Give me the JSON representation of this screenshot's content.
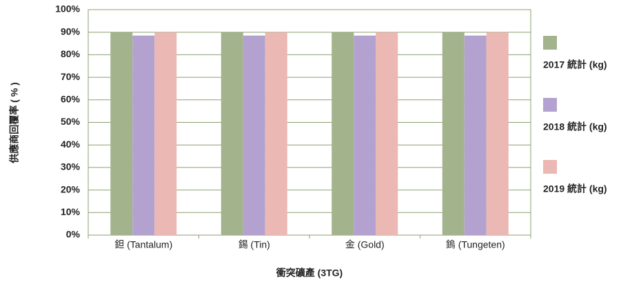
{
  "chart_data": {
    "type": "bar",
    "x_label": "衝突礦產 (3TG)",
    "y_label": "供應商回覆率 ( % )",
    "categories": [
      "鉭 (Tantalum)",
      "錫 (Tin)",
      "金 (Gold)",
      "鎢 (Tungeten)"
    ],
    "series": [
      {
        "name": "2017 統計 (kg)",
        "color": "#a3b38c",
        "values": [
          90,
          90,
          90,
          90
        ]
      },
      {
        "name": "2018 統計 (kg)",
        "color": "#b3a2cf",
        "values": [
          88.5,
          88.5,
          88.5,
          88.5
        ]
      },
      {
        "name": "2019 統計 (kg)",
        "color": "#ebb8b3",
        "values": [
          90,
          90,
          90,
          90
        ]
      }
    ],
    "ylim": [
      0,
      100
    ],
    "yticks": [
      {
        "value": 0,
        "label": "0%"
      },
      {
        "value": 10,
        "label": "10%"
      },
      {
        "value": 20,
        "label": "20%"
      },
      {
        "value": 30,
        "label": "30%"
      },
      {
        "value": 40,
        "label": "40%"
      },
      {
        "value": 50,
        "label": "50%"
      },
      {
        "value": 60,
        "label": "60%"
      },
      {
        "value": 70,
        "label": "70%"
      },
      {
        "value": 80,
        "label": "80%"
      },
      {
        "value": 90,
        "label": "90%"
      },
      {
        "value": 100,
        "label": "100%"
      }
    ],
    "grid": true,
    "legend": "right"
  }
}
